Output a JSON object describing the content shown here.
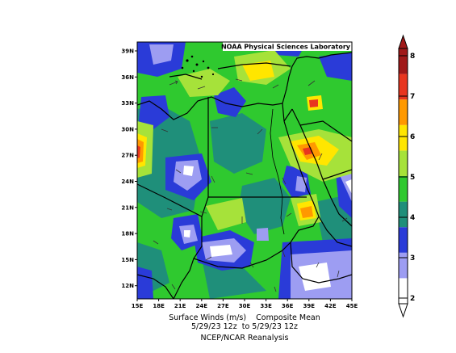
{
  "map": {
    "credit": "NOAA Physical Sciences Laboratory",
    "lat_labels": [
      "39N",
      "36N",
      "33N",
      "30N",
      "27N",
      "24N",
      "21N",
      "18N",
      "15N",
      "12N"
    ],
    "lon_labels": [
      "15E",
      "18E",
      "21E",
      "24E",
      "27E",
      "30E",
      "33E",
      "36E",
      "39E",
      "42E",
      "45E"
    ],
    "caption_line1": "Surface Winds (m/s)    Composite Mean",
    "caption_line2": "5/29/23 12z  to 5/29/23 12z",
    "caption_line3": "NCEP/NCAR Reanalysis"
  },
  "colorbar": {
    "labels": [
      "2",
      "3",
      "4",
      "5",
      "6",
      "7",
      "8"
    ],
    "colors": [
      "#ffffff",
      "#9d9df2",
      "#2a3bd8",
      "#1f8f7a",
      "#2fc92f",
      "#a6e23a",
      "#ffe600",
      "#ff9900",
      "#e8361f",
      "#a01818"
    ]
  },
  "colors": {
    "land_border": "#000000",
    "arrow": "#333333"
  }
}
